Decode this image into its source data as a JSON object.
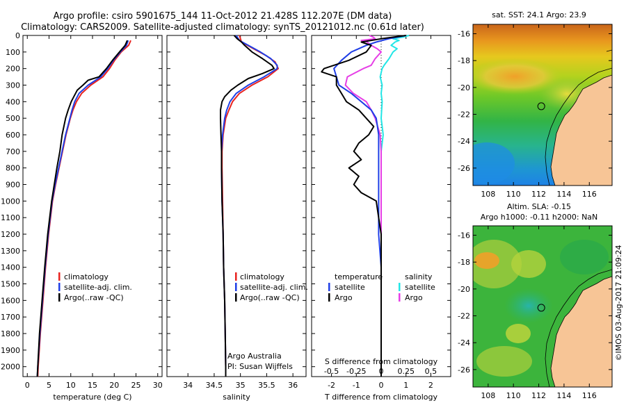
{
  "title": {
    "line1": "Argo profile: csiro 5901675_144 11-Oct-2012 21.428S 112.207E (DM data)",
    "line2": "Climatology: CARS2009. Satellite-adjusted climatology: synTS_20121012.nc (0.61d later)"
  },
  "colors": {
    "climatology": "#e8231f",
    "satellite": "#1f3ee6",
    "argo": "#000000",
    "sal_sat": "#22e6e6",
    "sal_argo": "#e63ee6"
  },
  "depth_ticks": [
    "0",
    "100",
    "200",
    "300",
    "400",
    "500",
    "600",
    "700",
    "800",
    "900",
    "1000",
    "1100",
    "1200",
    "1300",
    "1400",
    "1500",
    "1600",
    "1700",
    "1800",
    "1900",
    "2000"
  ],
  "chart_data": [
    {
      "type": "line",
      "name": "temperature",
      "xlabel": "temperature (deg C)",
      "ylabel": "depth",
      "xlim": [
        -1,
        31
      ],
      "ylim": [
        2060,
        0
      ],
      "xticks": [
        "0",
        "5",
        "10",
        "15",
        "20",
        "25",
        "30"
      ],
      "legend": [
        "climatology",
        "satellite-adj. clim.",
        "Argo(..raw -QC)"
      ],
      "series": [
        {
          "name": "climatology",
          "depth": [
            30,
            60,
            100,
            150,
            200,
            250,
            300,
            350,
            400,
            450,
            500,
            600,
            700,
            800,
            900,
            1000,
            1200,
            1400,
            1600,
            1800,
            2000,
            2060
          ],
          "values": [
            23.8,
            23.3,
            21.6,
            20.1,
            18.9,
            17.4,
            14.6,
            12.5,
            11.3,
            10.5,
            9.9,
            8.9,
            8.1,
            7.3,
            6.5,
            5.8,
            4.9,
            4.2,
            3.6,
            3.0,
            2.5,
            2.4
          ]
        },
        {
          "name": "satellite",
          "depth": [
            30,
            60,
            100,
            150,
            200,
            250,
            300,
            350,
            400,
            450,
            500,
            600,
            700,
            800,
            900,
            1000,
            1200,
            1400,
            1600,
            1800,
            2000,
            2060
          ],
          "values": [
            23.2,
            22.8,
            21.4,
            19.8,
            18.5,
            16.9,
            14.0,
            11.9,
            10.9,
            10.3,
            9.8,
            8.8,
            8.0,
            7.2,
            6.4,
            5.7,
            4.8,
            4.1,
            3.5,
            2.9,
            2.4,
            2.3
          ]
        },
        {
          "name": "argo",
          "depth": [
            30,
            60,
            100,
            150,
            200,
            250,
            270,
            300,
            330,
            370,
            400,
            450,
            500,
            600,
            700,
            800,
            1000,
            1200,
            1400,
            1600,
            1800,
            2000,
            2060
          ],
          "values": [
            23.0,
            22.5,
            21.2,
            19.6,
            18.2,
            16.5,
            14.0,
            12.8,
            11.5,
            10.7,
            10.1,
            9.4,
            8.8,
            8.0,
            7.5,
            6.8,
            5.6,
            4.7,
            4.0,
            3.4,
            2.8,
            2.4,
            2.3
          ]
        }
      ]
    },
    {
      "type": "line",
      "name": "salinity",
      "xlabel": "salinity",
      "xlim": [
        33.6,
        36.25
      ],
      "ylim": [
        2060,
        0
      ],
      "xticks": [
        "34",
        "34.5",
        "35",
        "35.5",
        "36"
      ],
      "legend": [
        "climatology",
        "satellite-adj. clim.",
        "Argo(..raw -QC)"
      ],
      "series": [
        {
          "name": "climatology",
          "depth": [
            0,
            40,
            80,
            120,
            160,
            200,
            250,
            300,
            350,
            400,
            450,
            500,
            600,
            700,
            800,
            1000,
            1200,
            1400,
            1600,
            1800,
            2000,
            2060
          ],
          "values": [
            34.98,
            35.02,
            35.25,
            35.48,
            35.66,
            35.72,
            35.52,
            35.22,
            34.98,
            34.85,
            34.78,
            34.72,
            34.67,
            34.65,
            34.65,
            34.66,
            34.67,
            34.68,
            34.7,
            34.71,
            34.72,
            34.72
          ]
        },
        {
          "name": "satellite",
          "depth": [
            0,
            30,
            60,
            100,
            140,
            180,
            200,
            250,
            300,
            350,
            400,
            450,
            500,
            600,
            700,
            800,
            1000,
            1200,
            1400,
            1600,
            1800,
            2000,
            2060
          ],
          "values": [
            34.92,
            34.98,
            35.15,
            35.38,
            35.58,
            35.7,
            35.7,
            35.45,
            35.15,
            34.92,
            34.8,
            34.74,
            34.7,
            34.66,
            34.64,
            34.64,
            34.65,
            34.67,
            34.68,
            34.7,
            34.71,
            34.72,
            34.72
          ]
        },
        {
          "name": "argo",
          "depth": [
            0,
            20,
            40,
            60,
            100,
            140,
            180,
            200,
            230,
            260,
            300,
            330,
            370,
            400,
            450,
            500,
            600,
            700,
            800,
            1000,
            1200,
            1400,
            1600,
            1800,
            2000,
            2060
          ],
          "values": [
            34.88,
            34.94,
            35.02,
            35.08,
            35.22,
            35.42,
            35.6,
            35.64,
            35.42,
            35.15,
            34.95,
            34.82,
            34.7,
            34.65,
            34.62,
            34.62,
            34.63,
            34.64,
            34.64,
            34.65,
            34.67,
            34.68,
            34.7,
            34.71,
            34.72,
            34.72
          ]
        }
      ]
    },
    {
      "type": "line",
      "name": "difference",
      "xlabel": "T difference from climatology",
      "xlabel_top": "S difference from climatology",
      "xlim": [
        -2.8,
        2.8
      ],
      "ylim": [
        2060,
        0
      ],
      "xticks_T": [
        "-2",
        "-1",
        "0",
        "1",
        "2"
      ],
      "xticks_S": [
        "-0.5",
        "-0.25",
        "0",
        "0.25",
        "0.5"
      ],
      "legend_left": {
        "head": "temperature",
        "items": [
          "satellite",
          "Argo"
        ]
      },
      "legend_right": {
        "head": "salinity",
        "items": [
          "satellite",
          "Argo"
        ]
      },
      "series": [
        {
          "name": "T satellite",
          "depth": [
            0,
            20,
            40,
            60,
            100,
            150,
            200,
            250,
            300,
            350,
            400,
            450,
            500,
            600,
            700,
            800,
            1000,
            1200,
            1400,
            1600,
            1800,
            2000,
            2060
          ],
          "values": [
            1.0,
            0.3,
            -0.2,
            -0.6,
            -1.2,
            -1.6,
            -1.9,
            -1.8,
            -1.7,
            -1.2,
            -0.8,
            -0.4,
            -0.2,
            -0.1,
            -0.1,
            -0.1,
            -0.1,
            -0.1,
            0.0,
            0.0,
            0.0,
            0.0,
            0.0
          ]
        },
        {
          "name": "T argo",
          "depth": [
            0,
            20,
            40,
            60,
            100,
            150,
            200,
            220,
            250,
            300,
            350,
            400,
            450,
            500,
            550,
            600,
            650,
            700,
            750,
            800,
            850,
            900,
            950,
            1000,
            1100,
            1200,
            1400,
            1600,
            1800,
            2000,
            2060
          ],
          "values": [
            1.0,
            0.0,
            -0.8,
            -0.4,
            -0.6,
            -1.3,
            -2.3,
            -2.4,
            -1.8,
            -1.8,
            -1.6,
            -1.4,
            -0.9,
            -0.6,
            -0.3,
            -0.5,
            -0.9,
            -1.1,
            -0.8,
            -1.3,
            -0.9,
            -1.1,
            -0.8,
            -0.2,
            -0.1,
            0.0,
            0.0,
            0.0,
            0.0,
            0.0,
            0.0
          ]
        },
        {
          "name": "S satellite",
          "depth": [
            0,
            10,
            20,
            30,
            40,
            60,
            80,
            100,
            140,
            180,
            200,
            250,
            300,
            350,
            400,
            500,
            600,
            700,
            800,
            1000,
            1200,
            1400,
            1600,
            1800,
            2000,
            2060
          ],
          "values": [
            0.28,
            0.22,
            0.12,
            0.18,
            0.14,
            0.1,
            0.16,
            0.12,
            0.08,
            0.03,
            0.01,
            -0.01,
            0.01,
            0.0,
            0.01,
            0.0,
            0.02,
            0.0,
            0.0,
            0.0,
            0.0,
            0.0,
            0.0,
            0.0,
            0.0,
            0.0
          ]
        },
        {
          "name": "S argo",
          "depth": [
            0,
            10,
            20,
            30,
            40,
            60,
            80,
            100,
            140,
            180,
            200,
            250,
            300,
            350,
            400,
            450,
            500,
            600,
            700,
            800,
            1000,
            1200,
            1400,
            1600,
            1800,
            2000,
            2060
          ],
          "values": [
            -0.12,
            -0.08,
            -0.06,
            -0.2,
            -0.14,
            -0.1,
            -0.04,
            0.0,
            -0.06,
            -0.1,
            -0.18,
            -0.34,
            -0.36,
            -0.28,
            -0.15,
            -0.1,
            -0.06,
            -0.01,
            0.0,
            0.0,
            0.0,
            0.0,
            0.0,
            0.0,
            0.0,
            0.0,
            0.0
          ]
        }
      ]
    },
    {
      "type": "heatmap",
      "name": "sst_map",
      "title": "sat. SST: 24.1 Argo: 23.9",
      "xticks": [
        "108",
        "110",
        "112",
        "114",
        "116"
      ],
      "yticks": [
        "-16",
        "-18",
        "-20",
        "-22",
        "-24",
        "-26"
      ],
      "xlim": [
        106.8,
        117.8
      ],
      "ylim": [
        -27.3,
        -15.3
      ],
      "marker": {
        "lon": 112.2,
        "lat": -21.4
      }
    },
    {
      "type": "heatmap",
      "name": "sla_map",
      "title": "Altim. SLA: -0.15",
      "subtitle": "Argo h1000: -0.11 h2000: NaN",
      "xticks": [
        "108",
        "110",
        "112",
        "114",
        "116"
      ],
      "yticks": [
        "-16",
        "-18",
        "-20",
        "-22",
        "-24",
        "-26"
      ],
      "xlim": [
        106.8,
        117.8
      ],
      "ylim": [
        -27.3,
        -15.3
      ],
      "marker": {
        "lon": 112.2,
        "lat": -21.4
      }
    }
  ],
  "annotations": {
    "provider": "Argo Australia",
    "pi": "PI: Susan Wijffels",
    "copyright": "©IMOS 03-Aug-2017 21:09:24"
  }
}
